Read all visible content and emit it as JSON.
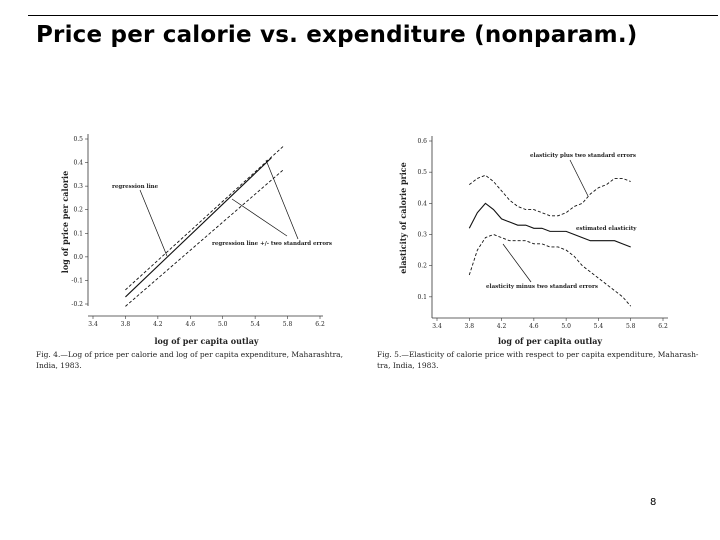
{
  "slide": {
    "title": "Price per calorie vs. expenditure (nonparam.)",
    "page_number": "8"
  },
  "chart_data": [
    {
      "type": "line",
      "title": "",
      "xlabel": "log of per capita outlay",
      "ylabel": "log of price per calorie",
      "xlim": [
        3.4,
        6.2
      ],
      "ylim": [
        -0.2,
        0.5
      ],
      "x_ticks": [
        "3.4",
        "3.8",
        "4.2",
        "4.6",
        "5.0",
        "5.4",
        "5.8",
        "6.2"
      ],
      "y_ticks": [
        "-0.2",
        "-0.1",
        "0.0",
        "0.1",
        "0.2",
        "0.3",
        "0.4",
        "0.5"
      ],
      "series": [
        {
          "name": "",
          "style": "solid",
          "x": [
            3.8,
            5.6
          ],
          "y": [
            -0.17,
            0.42
          ]
        },
        {
          "name": "",
          "style": "dashed",
          "x": [
            3.8,
            5.75
          ],
          "y": [
            -0.14,
            0.47
          ]
        },
        {
          "name": "",
          "style": "dashed",
          "x": [
            3.8,
            5.75
          ],
          "y": [
            -0.21,
            0.37
          ]
        }
      ],
      "annotations": [
        "regression line",
        "regression line +/- two standard errors"
      ],
      "caption": [
        "Fig. 4.—Log of price per calorie and log of per capita expenditure, Maharashtra,",
        "India, 1983."
      ]
    },
    {
      "type": "line",
      "title": "",
      "xlabel": "log of per capita outlay",
      "ylabel": "elasticity of calorie price",
      "xlim": [
        3.4,
        6.2
      ],
      "ylim": [
        0.0,
        0.6
      ],
      "x_ticks": [
        "3.4",
        "3.8",
        "4.2",
        "4.6",
        "5.0",
        "5.4",
        "5.8",
        "6.2"
      ],
      "y_ticks": [
        "0.1",
        "0.2",
        "0.3",
        "0.4",
        "0.5",
        "0.6"
      ],
      "x": [
        3.8,
        3.9,
        4.0,
        4.1,
        4.2,
        4.3,
        4.4,
        4.5,
        4.6,
        4.7,
        4.8,
        4.9,
        5.0,
        5.1,
        5.2,
        5.3,
        5.4,
        5.5,
        5.6,
        5.7,
        5.8
      ],
      "series": [
        {
          "name": "elasticity plus two standard errors",
          "style": "dashed",
          "y": [
            0.46,
            0.48,
            0.49,
            0.47,
            0.44,
            0.41,
            0.39,
            0.38,
            0.38,
            0.37,
            0.36,
            0.36,
            0.37,
            0.39,
            0.4,
            0.43,
            0.45,
            0.46,
            0.48,
            0.48,
            0.47
          ]
        },
        {
          "name": "estimated elasticity",
          "style": "solid",
          "y": [
            0.32,
            0.37,
            0.4,
            0.38,
            0.35,
            0.34,
            0.33,
            0.33,
            0.32,
            0.32,
            0.31,
            0.31,
            0.31,
            0.3,
            0.29,
            0.28,
            0.28,
            0.28,
            0.28,
            0.27,
            0.26
          ]
        },
        {
          "name": "elasticity minus two standard errors",
          "style": "dashed",
          "y": [
            0.17,
            0.25,
            0.29,
            0.3,
            0.29,
            0.28,
            0.28,
            0.28,
            0.27,
            0.27,
            0.26,
            0.26,
            0.25,
            0.23,
            0.2,
            0.18,
            0.16,
            0.14,
            0.12,
            0.1,
            0.07
          ]
        }
      ],
      "annotations": [
        "elasticity plus two standard errors",
        "estimated elasticity",
        "elasticity minus two standard errors"
      ],
      "caption": [
        "Fig. 5.—Elasticity of calorie price with respect to per capita expenditure, Maharash-",
        "tra, India, 1983."
      ]
    }
  ]
}
